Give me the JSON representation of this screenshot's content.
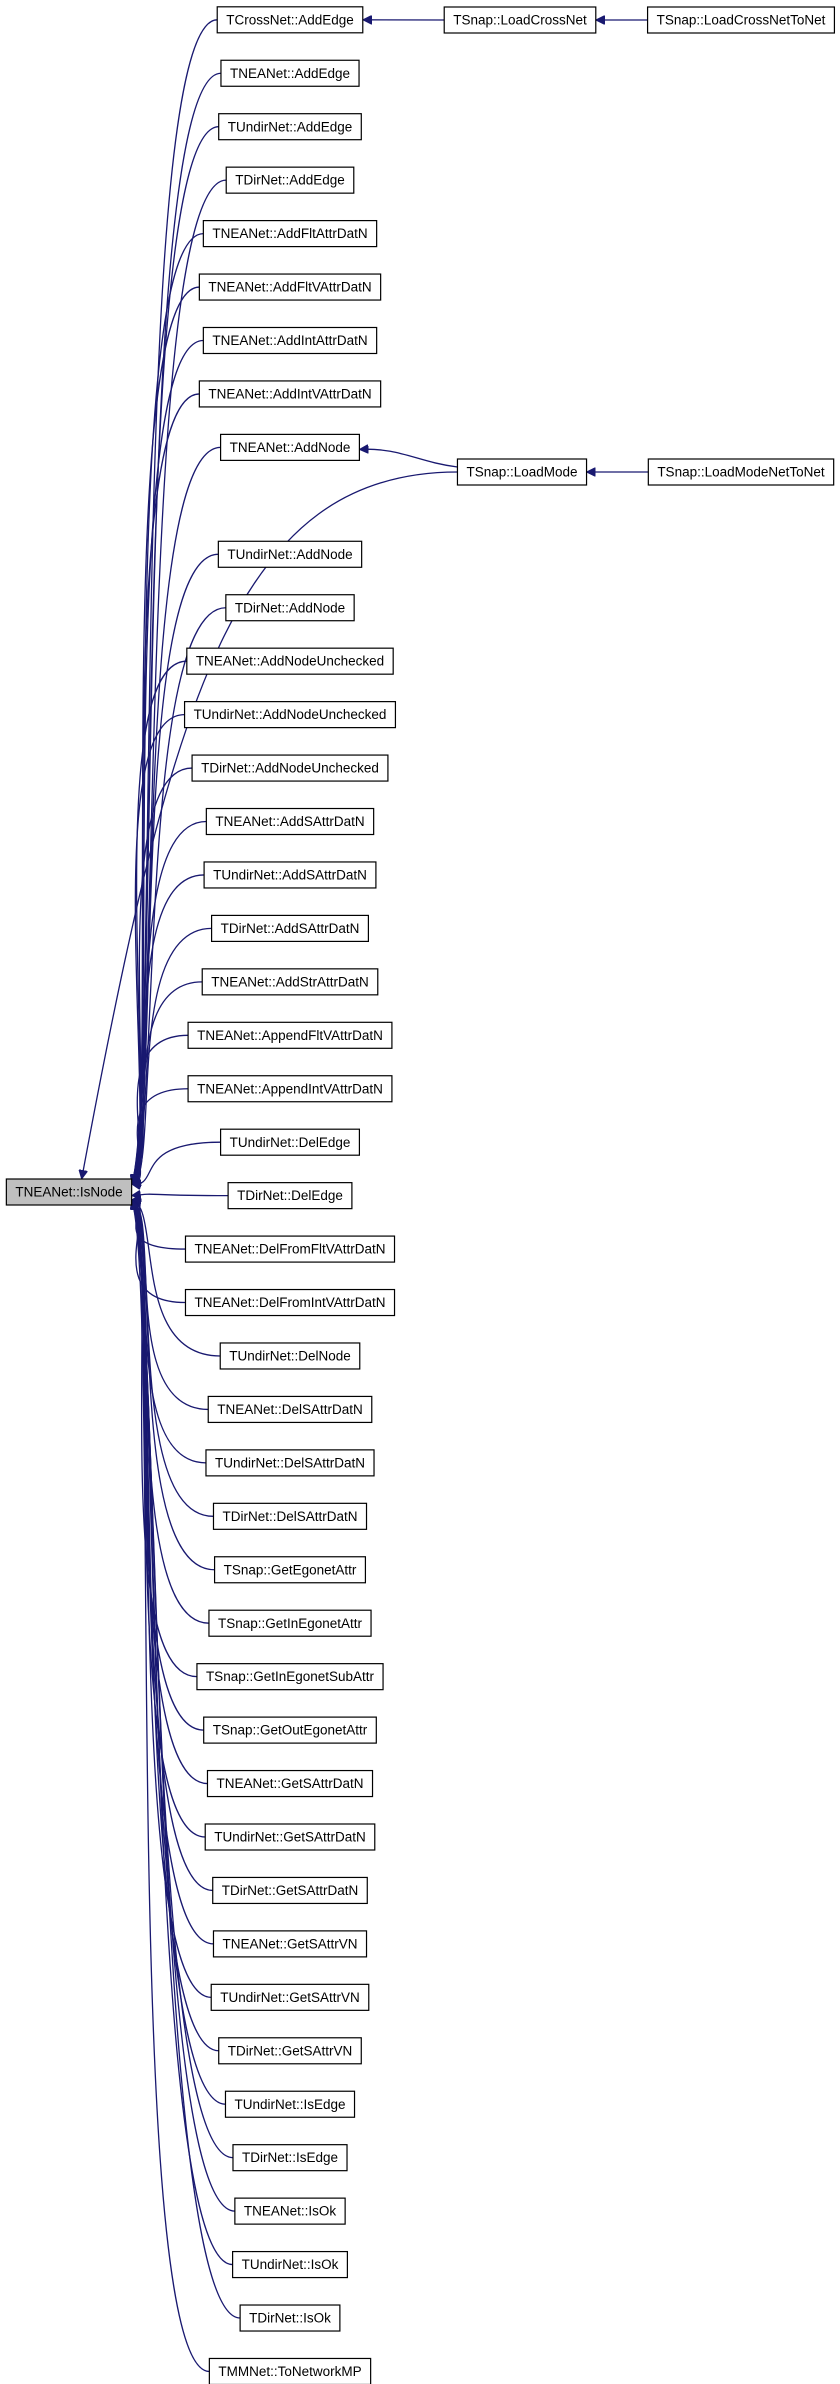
{
  "focus": "TNEANet::IsNode",
  "callers": [
    "TCrossNet::AddEdge",
    "TNEANet::AddEdge",
    "TUndirNet::AddEdge",
    "TDirNet::AddEdge",
    "TNEANet::AddFltAttrDatN",
    "TNEANet::AddFltVAttrDatN",
    "TNEANet::AddIntAttrDatN",
    "TNEANet::AddIntVAttrDatN",
    "TNEANet::AddNode",
    "TUndirNet::AddNode",
    "TDirNet::AddNode",
    "TNEANet::AddNodeUnchecked",
    "TUndirNet::AddNodeUnchecked",
    "TDirNet::AddNodeUnchecked",
    "TNEANet::AddSAttrDatN",
    "TUndirNet::AddSAttrDatN",
    "TDirNet::AddSAttrDatN",
    "TNEANet::AddStrAttrDatN",
    "TNEANet::AppendFltVAttrDatN",
    "TNEANet::AppendIntVAttrDatN",
    "TUndirNet::DelEdge",
    "TDirNet::DelEdge",
    "TNEANet::DelFromFltVAttrDatN",
    "TNEANet::DelFromIntVAttrDatN",
    "TUndirNet::DelNode",
    "TNEANet::DelSAttrDatN",
    "TUndirNet::DelSAttrDatN",
    "TDirNet::DelSAttrDatN",
    "TSnap::GetEgonetAttr",
    "TSnap::GetInEgonetAttr",
    "TSnap::GetInEgonetSubAttr",
    "TSnap::GetOutEgonetAttr",
    "TNEANet::GetSAttrDatN",
    "TUndirNet::GetSAttrDatN",
    "TDirNet::GetSAttrDatN",
    "TNEANet::GetSAttrVN",
    "TUndirNet::GetSAttrVN",
    "TDirNet::GetSAttrVN",
    "TUndirNet::IsEdge",
    "TDirNet::IsEdge",
    "TNEANet::IsOk",
    "TUndirNet::IsOk",
    "TDirNet::IsOk",
    "TMMNet::ToNetworkMP"
  ],
  "indirect": [
    "TSnap::LoadCrossNet",
    "TSnap::LoadCrossNetToNet",
    "TSnap::LoadMode",
    "TSnap::LoadModeNetToNet"
  ]
}
